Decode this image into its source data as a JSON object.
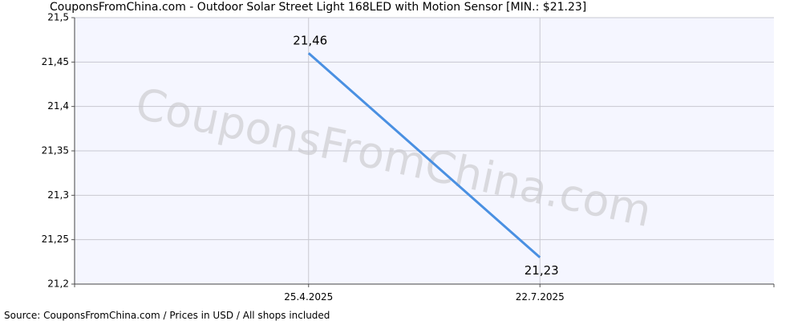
{
  "title": "CouponsFromChina.com - Outdoor Solar Street Light 168LED with Motion Sensor [MIN.: $21.23]",
  "source": "Source: CouponsFromChina.com / Prices in USD / All shops included",
  "watermark": "CouponsFromChina.com",
  "colors": {
    "line": "#4a90e2",
    "plot_bg": "#f5f6ff",
    "grid": "#c8c8d0",
    "watermark": "#d9d9de"
  },
  "chart_data": {
    "type": "line",
    "x": [
      "25.4.2025",
      "22.7.2025"
    ],
    "xlim": [
      "2025-01-26",
      "2025-10-19"
    ],
    "values": [
      21.46,
      21.23
    ],
    "data_labels": [
      "21,46",
      "21,23"
    ],
    "ylim": [
      21.2,
      21.5
    ],
    "yticks": [
      21.2,
      21.25,
      21.3,
      21.35,
      21.4,
      21.45,
      21.5
    ],
    "ytick_labels": [
      "21,2",
      "21,25",
      "21,3",
      "21,35",
      "21,4",
      "21,45",
      "21,5"
    ],
    "xtick_labels": [
      "25.4.2025",
      "22.7.2025"
    ],
    "grid": true,
    "legend": "none"
  }
}
